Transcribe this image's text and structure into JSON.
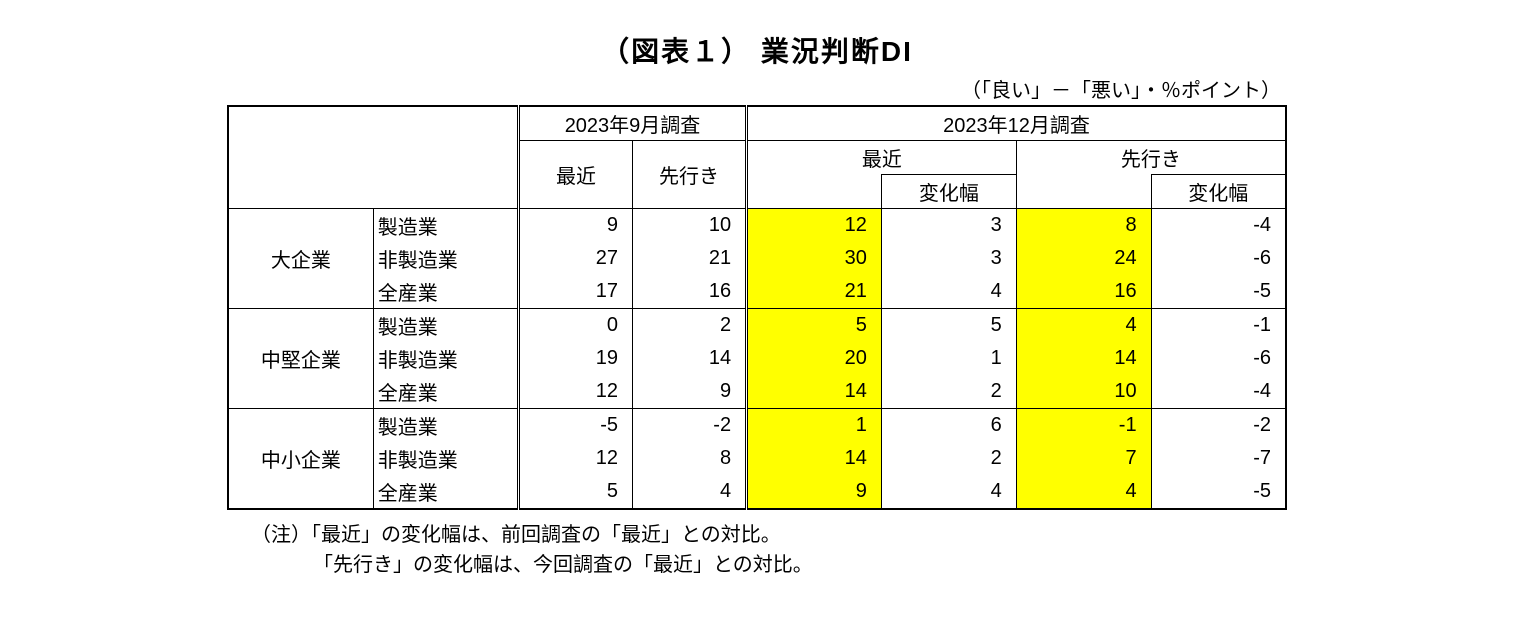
{
  "title": "（図表１） 業況判断DI",
  "unit_line": "（「良い」－「悪い」・％ポイント）",
  "surveys": {
    "sep": {
      "label": "2023年9月調査",
      "sub": [
        "最近",
        "先行き"
      ]
    },
    "dec": {
      "label": "2023年12月調査",
      "sub": [
        "最近",
        "変化幅",
        "先行き",
        "変化幅"
      ]
    }
  },
  "highlight_color": "#ffff00",
  "groups": [
    {
      "label": "大企業",
      "rows": [
        {
          "industry": "製造業",
          "sep_recent": 9,
          "sep_fwd": 10,
          "dec_recent": 12,
          "dec_recent_chg": 3,
          "dec_fwd": 8,
          "dec_fwd_chg": -4
        },
        {
          "industry": "非製造業",
          "sep_recent": 27,
          "sep_fwd": 21,
          "dec_recent": 30,
          "dec_recent_chg": 3,
          "dec_fwd": 24,
          "dec_fwd_chg": -6
        },
        {
          "industry": "全産業",
          "sep_recent": 17,
          "sep_fwd": 16,
          "dec_recent": 21,
          "dec_recent_chg": 4,
          "dec_fwd": 16,
          "dec_fwd_chg": -5
        }
      ]
    },
    {
      "label": "中堅企業",
      "rows": [
        {
          "industry": "製造業",
          "sep_recent": 0,
          "sep_fwd": 2,
          "dec_recent": 5,
          "dec_recent_chg": 5,
          "dec_fwd": 4,
          "dec_fwd_chg": -1
        },
        {
          "industry": "非製造業",
          "sep_recent": 19,
          "sep_fwd": 14,
          "dec_recent": 20,
          "dec_recent_chg": 1,
          "dec_fwd": 14,
          "dec_fwd_chg": -6
        },
        {
          "industry": "全産業",
          "sep_recent": 12,
          "sep_fwd": 9,
          "dec_recent": 14,
          "dec_recent_chg": 2,
          "dec_fwd": 10,
          "dec_fwd_chg": -4
        }
      ]
    },
    {
      "label": "中小企業",
      "rows": [
        {
          "industry": "製造業",
          "sep_recent": -5,
          "sep_fwd": -2,
          "dec_recent": 1,
          "dec_recent_chg": 6,
          "dec_fwd": -1,
          "dec_fwd_chg": -2
        },
        {
          "industry": "非製造業",
          "sep_recent": 12,
          "sep_fwd": 8,
          "dec_recent": 14,
          "dec_recent_chg": 2,
          "dec_fwd": 7,
          "dec_fwd_chg": -7
        },
        {
          "industry": "全産業",
          "sep_recent": 5,
          "sep_fwd": 4,
          "dec_recent": 9,
          "dec_recent_chg": 4,
          "dec_fwd": 4,
          "dec_fwd_chg": -5
        }
      ]
    }
  ],
  "notes": [
    "（注）「最近」の変化幅は、前回調査の「最近」との対比。",
    "「先行き」の変化幅は、今回調査の「最近」との対比。"
  ]
}
